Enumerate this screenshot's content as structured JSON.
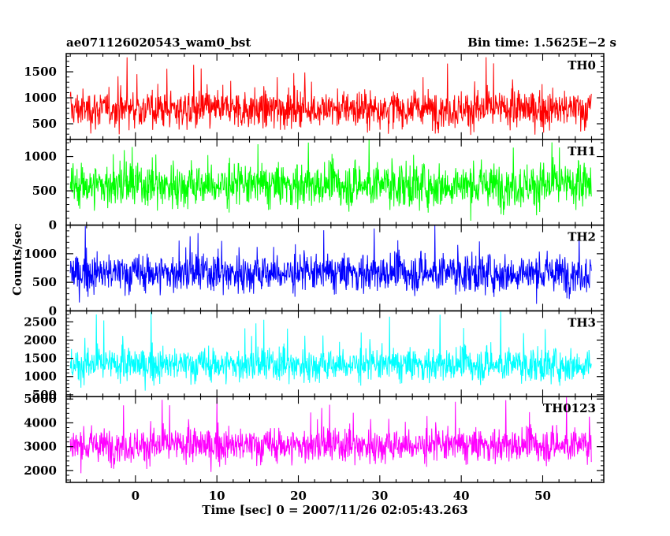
{
  "header": {
    "title": "ae071126020543_wam0_bst",
    "bin_time": "Bin time: 1.5625E−2 s"
  },
  "chart_data": {
    "type": "line",
    "xlabel": "Time [sec] 0 = 2007/11/26 02:05:43.263",
    "ylabel": "Counts/sec",
    "x_range": [
      -8,
      56
    ],
    "xlim": [
      -8.5,
      57.5
    ],
    "x_ticks": [
      0,
      10,
      20,
      30,
      40,
      50
    ],
    "grid": false,
    "panels": [
      {
        "name": "TH0",
        "color": "#ff0000",
        "ylim": [
          200,
          1850
        ],
        "yticks": [
          500,
          1000,
          1500
        ],
        "baseline": 780,
        "amplitude": 260,
        "min": 280,
        "max": 1850
      },
      {
        "name": "TH1",
        "color": "#00ff00",
        "ylim": [
          0,
          1250
        ],
        "yticks": [
          0,
          500,
          1000
        ],
        "baseline": 580,
        "amplitude": 230,
        "min": 30,
        "max": 1250
      },
      {
        "name": "TH2",
        "color": "#0000ff",
        "ylim": [
          0,
          1500
        ],
        "yticks": [
          0,
          500,
          1000
        ],
        "baseline": 660,
        "amplitude": 240,
        "min": 30,
        "max": 1500
      },
      {
        "name": "TH3",
        "color": "#00ffff",
        "ylim": [
          450,
          2800
        ],
        "yticks": [
          500,
          1000,
          1500,
          2000,
          2500
        ],
        "baseline": 1320,
        "amplitude": 330,
        "min": 520,
        "max": 2800
      },
      {
        "name": "TH0123",
        "color": "#ff00ff",
        "ylim": [
          1500,
          5100
        ],
        "yticks": [
          2000,
          3000,
          4000,
          5000
        ],
        "baseline": 3050,
        "amplitude": 520,
        "min": 1700,
        "max": 5100
      }
    ]
  }
}
